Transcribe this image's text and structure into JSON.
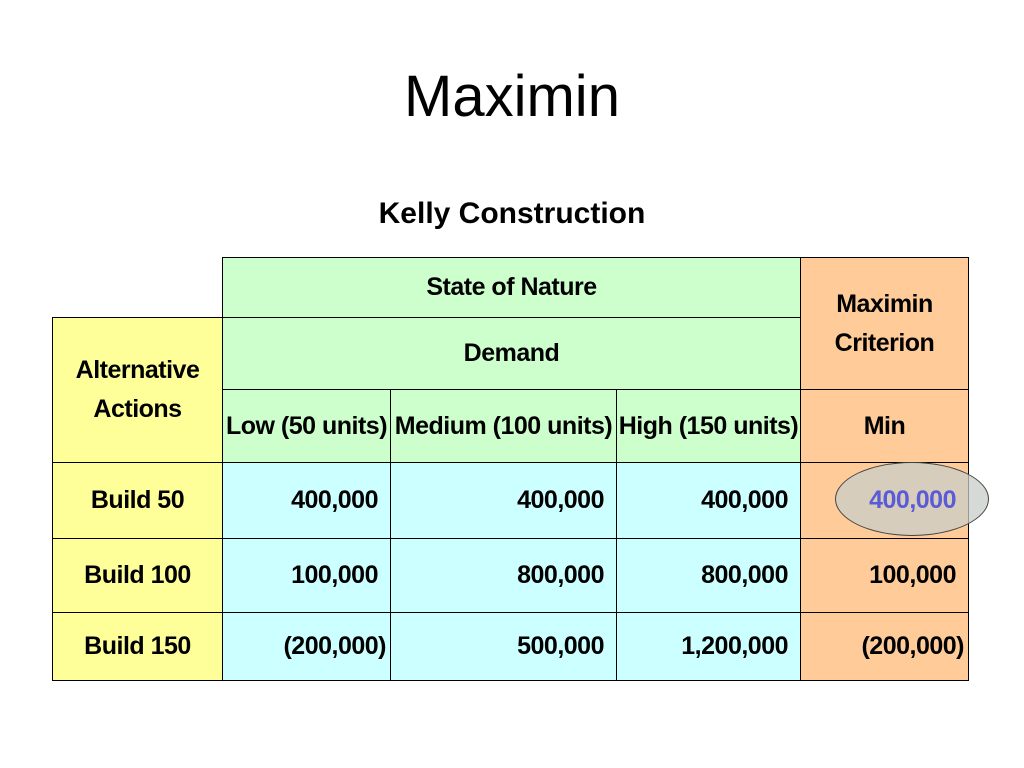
{
  "slide": {
    "title": "Maximin",
    "subtitle": "Kelly Construction"
  },
  "table": {
    "state_of_nature": "State of Nature",
    "demand": "Demand",
    "alternative_actions": "Alternative Actions",
    "criterion_header": "Maximin Criterion",
    "min_label": "Min",
    "columns": [
      "Low (50 units)",
      "Medium (100 units)",
      "High (150 units)"
    ],
    "rows": [
      {
        "action": "Build 50",
        "values": [
          "400,000",
          "400,000",
          "400,000"
        ],
        "min": "400,000"
      },
      {
        "action": "Build 100",
        "values": [
          "100,000",
          "800,000",
          "800,000"
        ],
        "min": "100,000"
      },
      {
        "action": "Build 150",
        "values": [
          "(200,000)",
          "500,000",
          "1,200,000"
        ],
        "min": "(200,000)"
      }
    ],
    "highlighted_row": 0
  },
  "colors": {
    "header_green": "#ccffcc",
    "action_yellow": "#ffff99",
    "value_cyan": "#ccffff",
    "criterion_orange": "#ffcc99",
    "highlight_text": "#5b5bd6"
  }
}
